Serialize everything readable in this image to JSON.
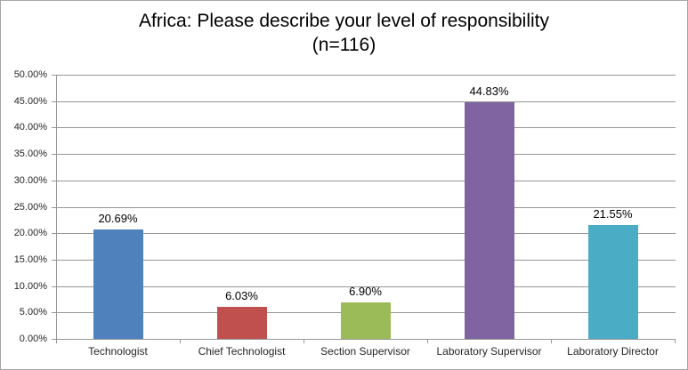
{
  "chart_data": {
    "type": "bar",
    "title": "Africa: Please describe your level of responsibility (n=116)",
    "title_lines": [
      "Africa: Please describe your level of responsibility",
      "(n=116)"
    ],
    "categories": [
      "Technologist",
      "Chief Technologist",
      "Section Supervisor",
      "Laboratory Supervisor",
      "Laboratory Director"
    ],
    "values": [
      20.69,
      6.03,
      6.9,
      44.83,
      21.55
    ],
    "value_labels": [
      "20.69%",
      "6.03%",
      "6.90%",
      "44.83%",
      "21.55%"
    ],
    "bar_colors": [
      "#4F81BD",
      "#C0504D",
      "#9BBB59",
      "#8064A2",
      "#4BACC6"
    ],
    "xlabel": "",
    "ylabel": "",
    "ylim": [
      0,
      50
    ],
    "ytick_step": 5,
    "ytick_labels": [
      "0.00%",
      "5.00%",
      "10.00%",
      "15.00%",
      "20.00%",
      "25.00%",
      "30.00%",
      "35.00%",
      "40.00%",
      "45.00%",
      "50.00%"
    ],
    "grid": true,
    "legend": "none"
  },
  "colors": {
    "background": "#FFFFFF",
    "border": "#A6A6A6",
    "gridline": "#969696",
    "axis": "#969696",
    "title_text": "#000000",
    "axis_label_text": "#262626",
    "value_label_text": "#000000"
  }
}
